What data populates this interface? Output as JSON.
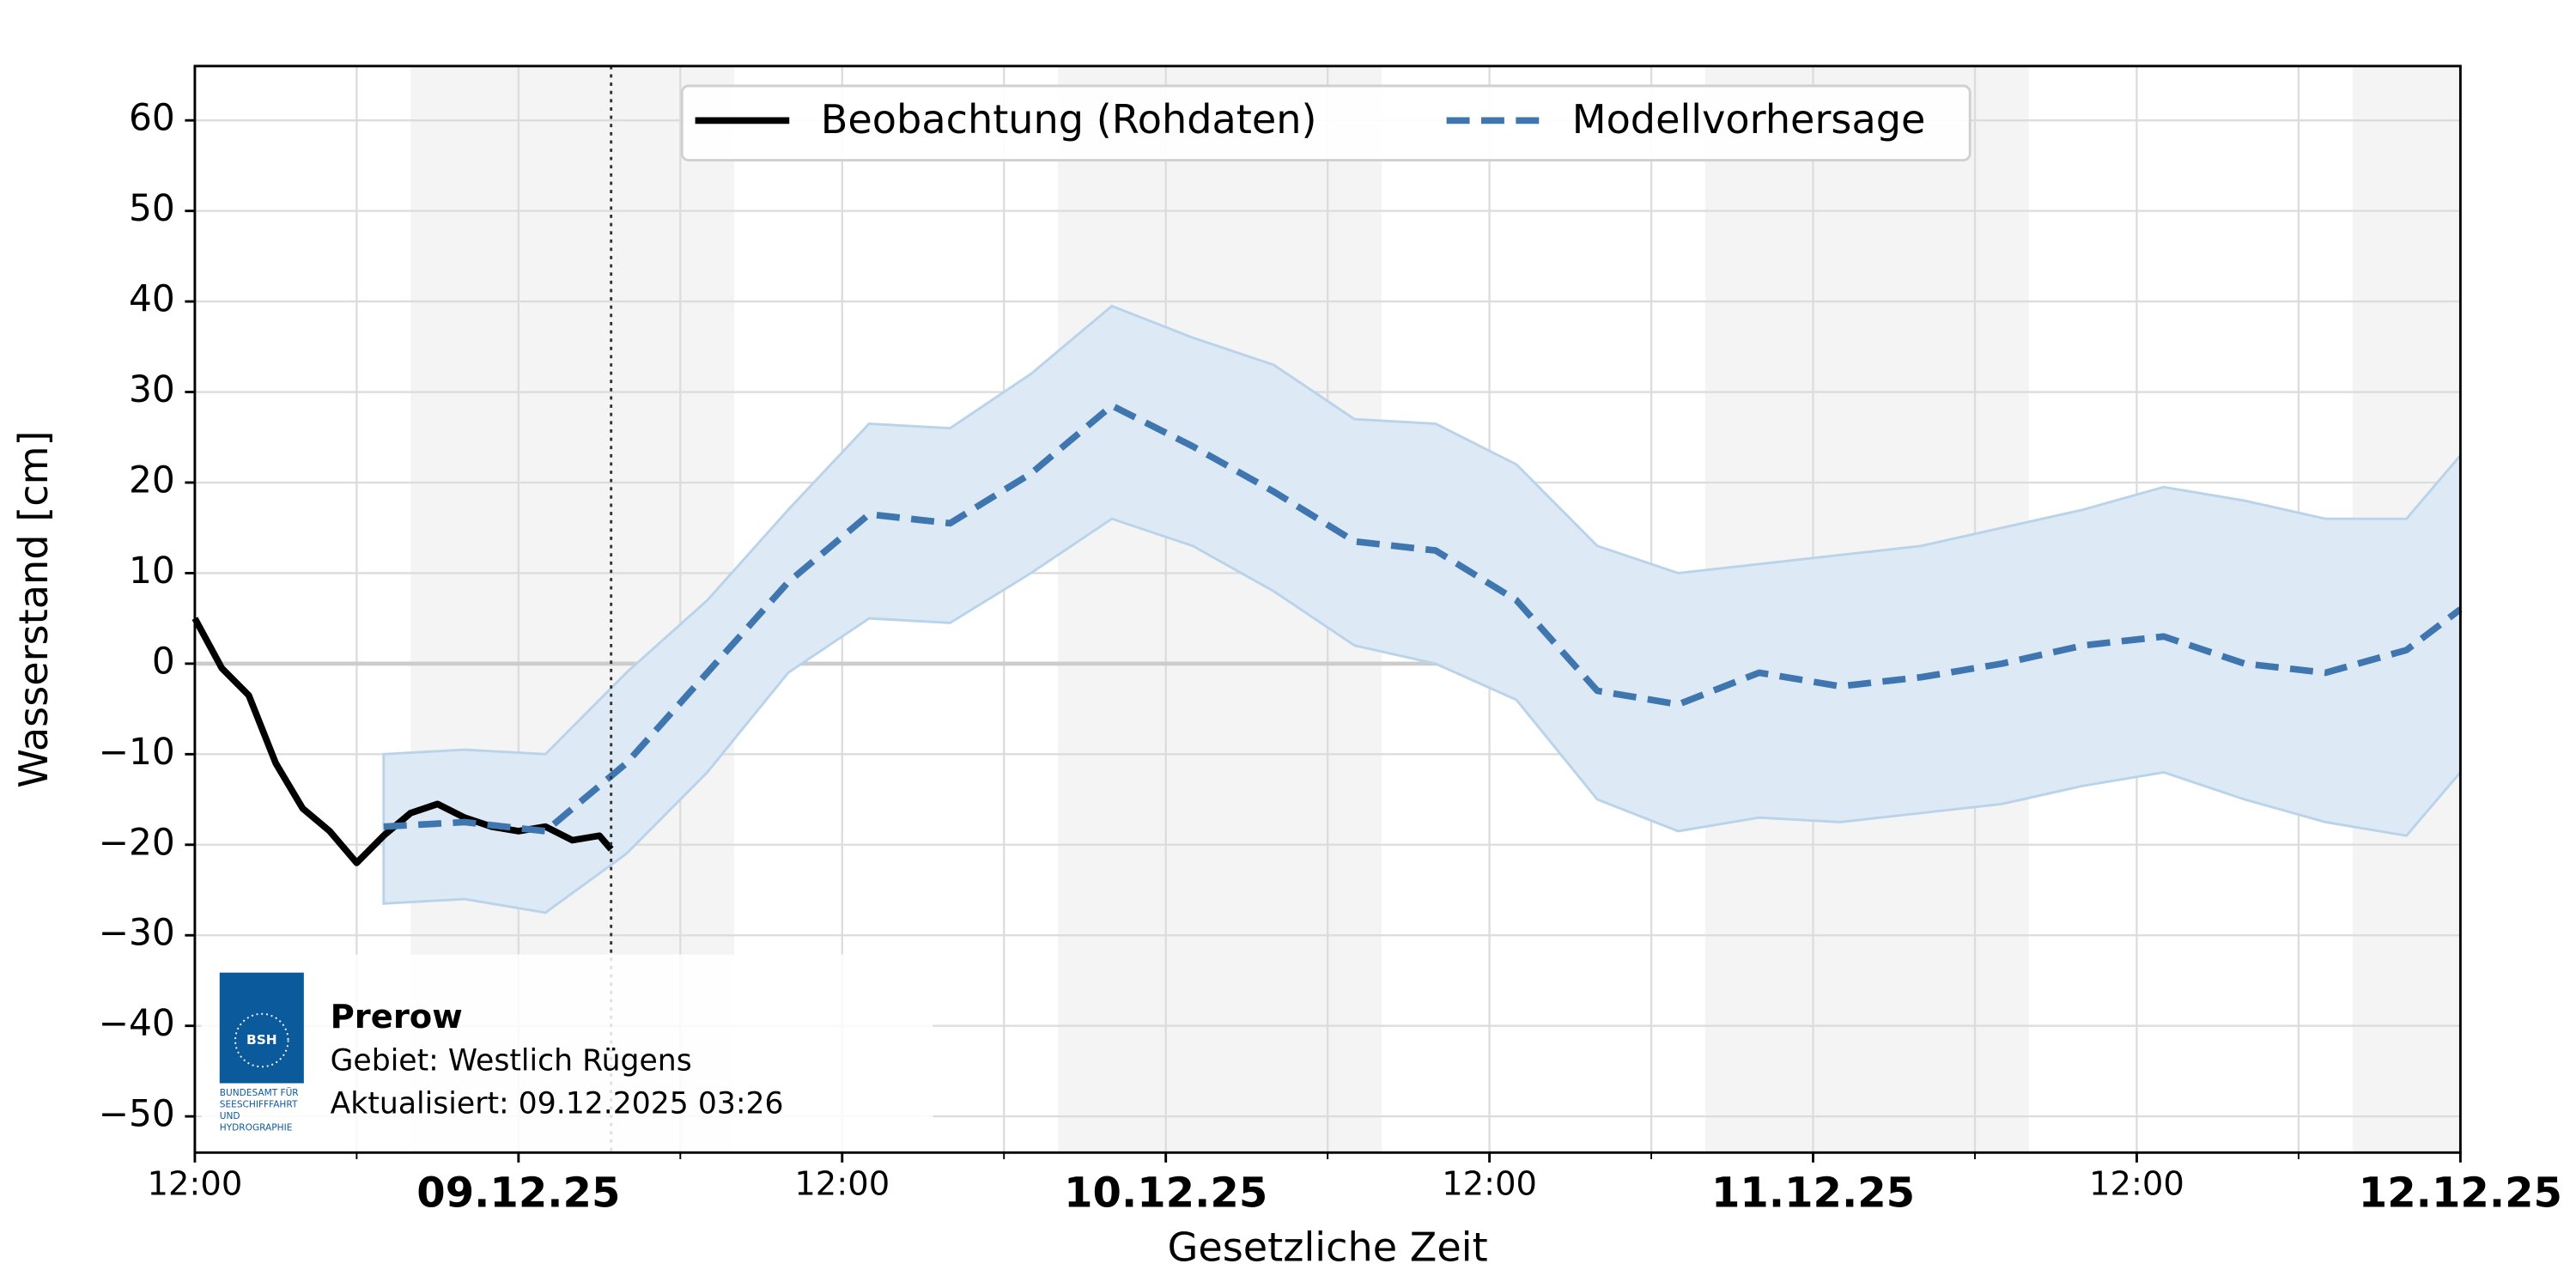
{
  "chart_data": {
    "type": "line",
    "ylabel": "Wasserstand [cm]",
    "xlabel": "Gesetzliche Zeit",
    "xlim": [
      "2025-12-08T12:00",
      "2025-12-12T00:00"
    ],
    "xticks": [
      {
        "value": "2025-12-08T12:00",
        "label": "12:00"
      },
      {
        "value": "2025-12-09T00:00",
        "label": "09.12.25"
      },
      {
        "value": "2025-12-09T12:00",
        "label": "12:00"
      },
      {
        "value": "2025-12-10T00:00",
        "label": "10.12.25"
      },
      {
        "value": "2025-12-10T12:00",
        "label": "12:00"
      },
      {
        "value": "2025-12-11T00:00",
        "label": "11.12.25"
      },
      {
        "value": "2025-12-11T12:00",
        "label": "12:00"
      },
      {
        "value": "2025-12-12T00:00",
        "label": "12.12.25"
      }
    ],
    "xminorticks": [
      "2025-12-08T18:00",
      "2025-12-09T06:00",
      "2025-12-09T18:00",
      "2025-12-10T06:00",
      "2025-12-10T18:00",
      "2025-12-11T06:00",
      "2025-12-11T18:00"
    ],
    "ylim": [
      -54,
      66
    ],
    "yticks": [
      {
        "value": -50,
        "label": "−50"
      },
      {
        "value": -40,
        "label": "−40"
      },
      {
        "value": -30,
        "label": "−30"
      },
      {
        "value": -20,
        "label": "−20"
      },
      {
        "value": -10,
        "label": "−10"
      },
      0,
      10,
      20,
      30,
      40,
      50,
      60
    ],
    "grid": true,
    "zero_line": true,
    "legend": "upper center",
    "shaded_periods": [
      [
        "2025-12-08T20:00",
        "2025-12-09T08:00"
      ],
      [
        "2025-12-09T20:00",
        "2025-12-10T08:00"
      ],
      [
        "2025-12-10T20:00",
        "2025-12-11T08:00"
      ],
      [
        "2025-12-11T20:00",
        "2025-12-12T00:00"
      ]
    ],
    "now": "2025-12-09T03:26",
    "series": [
      {
        "name": "Beobachtung (Rohdaten)",
        "color": "#000000",
        "linestyle": "solid",
        "x": [
          "2025-12-08T12:00",
          "2025-12-08T13:00",
          "2025-12-08T14:00",
          "2025-12-08T15:00",
          "2025-12-08T16:00",
          "2025-12-08T17:00",
          "2025-12-08T18:00",
          "2025-12-08T19:00",
          "2025-12-08T20:00",
          "2025-12-08T21:00",
          "2025-12-08T22:00",
          "2025-12-08T23:00",
          "2025-12-09T00:00",
          "2025-12-09T01:00",
          "2025-12-09T02:00",
          "2025-12-09T03:00",
          "2025-12-09T03:26"
        ],
        "values": [
          5,
          -0.5,
          -3.5,
          -11,
          -16,
          -18.5,
          -22,
          -19,
          -16.5,
          -15.5,
          -17,
          -18,
          -18.5,
          -18,
          -19.5,
          -19,
          -20.5
        ]
      },
      {
        "name": "Modellvorhersage",
        "color": "#3f76b0",
        "linestyle": "dashed",
        "x": [
          "2025-12-08T19:00",
          "2025-12-08T22:00",
          "2025-12-09T01:00",
          "2025-12-09T04:00",
          "2025-12-09T07:00",
          "2025-12-09T10:00",
          "2025-12-09T13:00",
          "2025-12-09T16:00",
          "2025-12-09T19:00",
          "2025-12-09T22:00",
          "2025-12-10T01:00",
          "2025-12-10T04:00",
          "2025-12-10T07:00",
          "2025-12-10T10:00",
          "2025-12-10T13:00",
          "2025-12-10T16:00",
          "2025-12-10T19:00",
          "2025-12-10T22:00",
          "2025-12-11T01:00",
          "2025-12-11T04:00",
          "2025-12-11T07:00",
          "2025-12-11T10:00",
          "2025-12-11T13:00",
          "2025-12-11T16:00",
          "2025-12-11T19:00",
          "2025-12-11T22:00",
          "2025-12-12T00:00"
        ],
        "values": [
          -18,
          -17.5,
          -18.5,
          -11,
          -1,
          9,
          16.5,
          15.5,
          21,
          28.5,
          24,
          19,
          13.5,
          12.5,
          7,
          -3,
          -4.5,
          -1,
          -2.5,
          -1.5,
          0,
          2,
          3,
          0,
          -1,
          1.5,
          6
        ],
        "band": {
          "color": "#dde9f4",
          "edge_color": "#b9d3ea",
          "upper": [
            -10,
            -9.5,
            -10,
            -1,
            7,
            17,
            26.5,
            26,
            32,
            39.5,
            36,
            33,
            27,
            26.5,
            22,
            13,
            10,
            11,
            12,
            13,
            15,
            17,
            19.5,
            18,
            16,
            16,
            23
          ],
          "lower": [
            -26.5,
            -26,
            -27.5,
            -21,
            -12,
            -1,
            5,
            4.5,
            10,
            16,
            13,
            8,
            2,
            0,
            -4,
            -15,
            -18.5,
            -17,
            -17.5,
            -16.5,
            -15.5,
            -13.5,
            -12,
            -15,
            -17.5,
            -19,
            -12
          ]
        }
      }
    ],
    "station_box": {
      "logo_text": "BSH",
      "logo_caption": [
        "BUNDESAMT FÜR",
        "SEESCHIFFFAHRT",
        "UND",
        "HYDROGRAPHIE"
      ],
      "title": "Prerow",
      "lines": [
        "Gebiet: Westlich Rügens",
        "Aktualisiert: 09.12.2025 03:26"
      ]
    }
  }
}
